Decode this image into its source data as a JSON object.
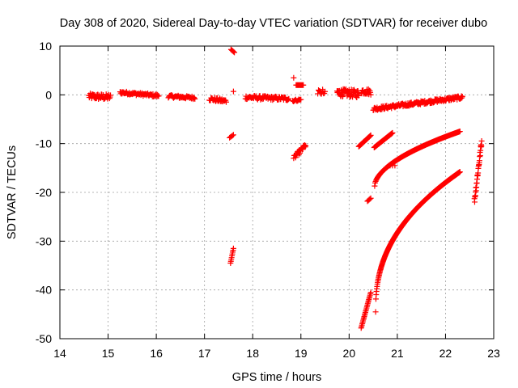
{
  "chart_data": {
    "type": "scatter",
    "title": "Day 308 of 2020, Sidereal Day-to-day VTEC variation (SDTVAR) for receiver dubo",
    "xlabel": "GPS time / hours",
    "ylabel": "SDTVAR / TECUs",
    "xlim": [
      14,
      23
    ],
    "ylim": [
      -50,
      10
    ],
    "xticks": [
      14,
      15,
      16,
      17,
      18,
      19,
      20,
      21,
      22,
      23
    ],
    "yticks": [
      10,
      0,
      -10,
      -20,
      -30,
      -40,
      -50
    ],
    "x_tick_labels": [
      "14",
      "15",
      "16",
      "17",
      "18",
      "19",
      "20",
      "21",
      "22",
      "23"
    ],
    "y_tick_labels": [
      "10",
      "0",
      "-10",
      "-20",
      "-30",
      "-40",
      "-50"
    ],
    "grid": true,
    "marker": "+",
    "color": "#ff0000",
    "segments": [
      {
        "x0": 14.6,
        "x1": 15.05,
        "y0": -0.3,
        "y1": -0.5,
        "spread": 1.2,
        "step": 0.01
      },
      {
        "x0": 15.25,
        "x1": 16.05,
        "y0": 0.5,
        "y1": -0.2,
        "spread": 0.6,
        "step": 0.012
      },
      {
        "x0": 16.25,
        "x1": 16.8,
        "y0": -0.3,
        "y1": -0.6,
        "spread": 0.6,
        "step": 0.012
      },
      {
        "x0": 17.1,
        "x1": 17.45,
        "y0": -0.8,
        "y1": -1.3,
        "spread": 0.8,
        "step": 0.012
      },
      {
        "x0": 17.85,
        "x1": 18.75,
        "y0": -0.5,
        "y1": -0.8,
        "spread": 0.8,
        "step": 0.012
      },
      {
        "x0": 18.83,
        "x1": 19.0,
        "y0": -1.2,
        "y1": -1.0,
        "spread": 0.4,
        "step": 0.015
      },
      {
        "x0": 18.9,
        "x1": 19.05,
        "y0": 2.0,
        "y1": 2.0,
        "spread": 0.0,
        "step": 0.015
      },
      {
        "x0": 19.35,
        "x1": 19.5,
        "y0": 0.6,
        "y1": 0.3,
        "spread": 0.8,
        "step": 0.015
      },
      {
        "x0": 19.75,
        "x1": 20.2,
        "y0": 0.5,
        "y1": 0.2,
        "spread": 1.6,
        "step": 0.008
      },
      {
        "x0": 20.25,
        "x1": 20.45,
        "y0": 0.8,
        "y1": 0.6,
        "spread": 1.2,
        "step": 0.01
      },
      {
        "x0": 20.5,
        "x1": 22.35,
        "y0": -2.9,
        "y1": -0.5,
        "spread": 0.7,
        "step": 0.01
      },
      {
        "x0": 17.55,
        "x1": 17.62,
        "y0": 9.3,
        "y1": 8.7,
        "spread": 0.0,
        "step": 0.02
      },
      {
        "x0": 17.52,
        "x1": 17.6,
        "y0": -8.8,
        "y1": -8.2,
        "spread": 0.0,
        "step": 0.02
      },
      {
        "x0": 17.54,
        "x1": 17.6,
        "y0": -34.5,
        "y1": -31.5,
        "spread": 0.0,
        "step": 0.008
      },
      {
        "x0": 18.85,
        "x1": 19.1,
        "y0": -13.0,
        "y1": -10.3,
        "spread": 0.9,
        "step": 0.01
      },
      {
        "x0": 20.2,
        "x1": 20.45,
        "y0": -10.6,
        "y1": -8.3,
        "spread": 0.0,
        "step": 0.01
      },
      {
        "x0": 20.52,
        "x1": 20.9,
        "y0": -10.8,
        "y1": -7.8,
        "spread": 0.0,
        "step": 0.01
      },
      {
        "x0": 20.38,
        "x1": 20.45,
        "y0": -21.8,
        "y1": -21.2,
        "spread": 0.0,
        "step": 0.02
      },
      {
        "x0": 20.25,
        "x1": 20.45,
        "y0": -47.8,
        "y1": -40.5,
        "spread": 0.0,
        "step": 0.008
      },
      {
        "x0": 20.95,
        "x1": 20.85,
        "y0": -14.5,
        "y1": -14.5,
        "spread": 0.0,
        "step": 0.05
      },
      {
        "x0": 22.6,
        "x1": 22.75,
        "y0": -21.8,
        "y1": -9.5,
        "spread": 1.5,
        "step": 0.005
      }
    ],
    "curves": [
      {
        "x0": 20.53,
        "x1": 22.3,
        "y0": -18.7,
        "y1": -7.5,
        "exp": 0.55,
        "step": 0.01
      },
      {
        "x0": 20.55,
        "x1": 22.3,
        "y0": -44.5,
        "y1": -15.8,
        "exp": 0.42,
        "step": 0.006
      }
    ],
    "isolated_points": [
      {
        "x": 18.85,
        "y": 3.5
      },
      {
        "x": 17.6,
        "y": 0.7
      },
      {
        "x": 19.45,
        "y": 1.1
      }
    ]
  }
}
